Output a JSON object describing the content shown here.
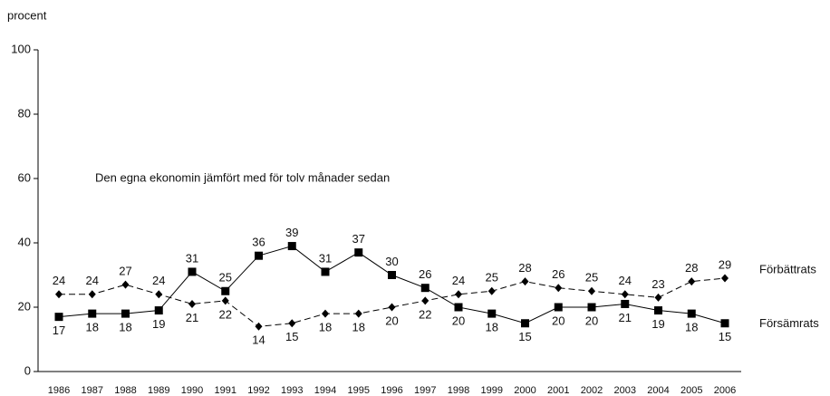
{
  "chart_data": {
    "type": "line",
    "ylabel": "procent",
    "annotation": "Den egna ekonomin jämfört med för tolv månader sedan",
    "categories": [
      "1986",
      "1987",
      "1988",
      "1989",
      "1990",
      "1991",
      "1992",
      "1993",
      "1994",
      "1995",
      "1996",
      "1997",
      "1998",
      "1999",
      "2000",
      "2001",
      "2002",
      "2003",
      "2004",
      "2005",
      "2006"
    ],
    "series": [
      {
        "name": "Förbättrats",
        "color": "#000000",
        "style": "dashed",
        "marker": "diamond",
        "values": [
          24,
          24,
          27,
          24,
          21,
          22,
          14,
          15,
          18,
          18,
          20,
          22,
          24,
          25,
          28,
          26,
          25,
          24,
          23,
          28,
          29
        ]
      },
      {
        "name": "Försämrats",
        "color": "#000000",
        "style": "solid",
        "marker": "square",
        "values": [
          17,
          18,
          18,
          19,
          31,
          25,
          36,
          39,
          31,
          37,
          30,
          26,
          20,
          18,
          15,
          20,
          20,
          21,
          19,
          18,
          15
        ]
      }
    ],
    "ylim": [
      0,
      100
    ],
    "yticks": [
      0,
      20,
      40,
      60,
      80,
      100
    ],
    "grid": false
  }
}
